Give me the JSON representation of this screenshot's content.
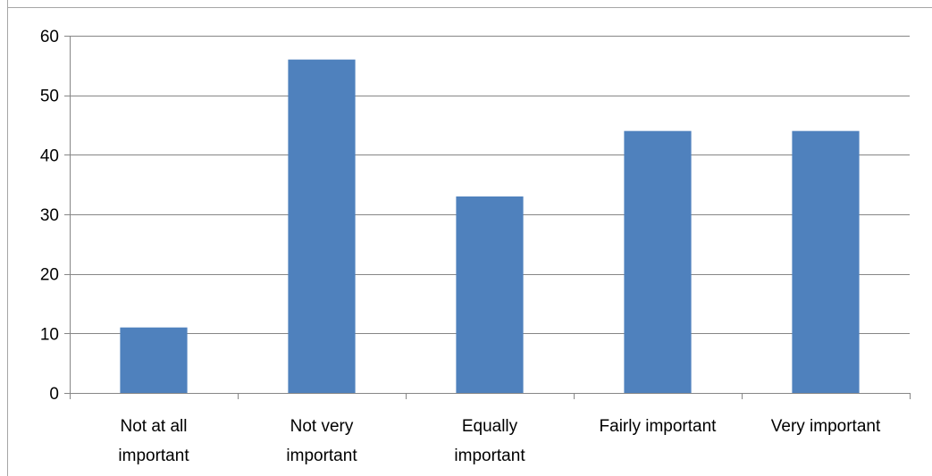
{
  "chart_data": {
    "type": "bar",
    "categories": [
      [
        "Not at all",
        "important"
      ],
      [
        "Not very",
        "important"
      ],
      [
        "Equally",
        "important"
      ],
      [
        "Fairly important"
      ],
      [
        "Very important"
      ]
    ],
    "values": [
      11,
      56,
      33,
      44,
      44
    ],
    "title": "",
    "xlabel": "",
    "ylabel": "",
    "ylim": [
      0,
      60
    ],
    "yticks": [
      0,
      10,
      20,
      30,
      40,
      50,
      60
    ],
    "grid": true,
    "legend": "none",
    "colors": {
      "bar": "#4f81bd",
      "grid": "#868686",
      "axis": "#868686",
      "text": "#000000",
      "border": "#a6a6a6"
    }
  }
}
